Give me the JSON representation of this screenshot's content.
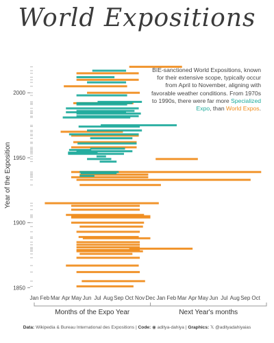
{
  "title": "World Expositions",
  "annotation": {
    "text_before": "BIE-sanctioned World Expositions, known for their extensive scope, typically occur from April to November, aligning with favorable weather conditions. From 1970s to 1990s, there were far more",
    "specialized": "Specialized Expo",
    "comma_than": ", than",
    "world": "World Expos",
    "period": "."
  },
  "caption": {
    "data_label": "Data:",
    "data_text": "Wikipedia & Bureau International des Expositions |",
    "code_label": "Code:",
    "code_handle": "aditya-dahiya",
    "sep": "|",
    "graphics_label": "Graphics:",
    "graphics_handle": "@adityadahiyaias"
  },
  "chart_data": {
    "type": "range-bar",
    "ylabel": "Year of the Exposition",
    "ylim": [
      1847,
      2026
    ],
    "y_ticks": [
      1850,
      1900,
      1950,
      2000
    ],
    "xlim": [
      0,
      22
    ],
    "x_ticks": [
      "Jan",
      "Feb",
      "Mar",
      "Apr",
      "May",
      "Jun",
      "Jul",
      "Aug",
      "Sep",
      "Oct",
      "Nov",
      "Dec",
      "Jan",
      "Feb",
      "Mar",
      "Apr",
      "May",
      "Jun",
      "Jul",
      "Aug",
      "Sep",
      "Oct"
    ],
    "x_group_labels": [
      {
        "label": "Months of the Expo Year",
        "from": 0,
        "to": 11
      },
      {
        "label": "Next Year's months",
        "from": 11,
        "to": 22
      }
    ],
    "series_colors": {
      "world": "#f08a17",
      "specialized": "#1aa99a"
    },
    "series": [
      {
        "name": "World Expos",
        "type": "world",
        "expos": [
          {
            "year": 1851,
            "start": 4.0,
            "end": 9.4
          },
          {
            "year": 1855,
            "start": 4.5,
            "end": 10.5
          },
          {
            "year": 1862,
            "start": 4.0,
            "end": 10.0
          },
          {
            "year": 1867,
            "start": 3.0,
            "end": 9.9
          },
          {
            "year": 1873,
            "start": 4.0,
            "end": 10.0
          },
          {
            "year": 1876,
            "start": 4.3,
            "end": 9.3
          },
          {
            "year": 1878,
            "start": 4.0,
            "end": 10.3
          },
          {
            "year": 1879,
            "start": 4.0,
            "end": 10.0
          },
          {
            "year": 1880,
            "start": 9.0,
            "end": 15.0
          },
          {
            "year": 1881,
            "start": 4.0,
            "end": 10.0
          },
          {
            "year": 1883,
            "start": 4.0,
            "end": 10.0
          },
          {
            "year": 1885,
            "start": 4.0,
            "end": 10.0
          },
          {
            "year": 1888,
            "start": 4.6,
            "end": 11.0
          },
          {
            "year": 1889,
            "start": 4.2,
            "end": 9.9
          },
          {
            "year": 1893,
            "start": 4.0,
            "end": 10.0
          },
          {
            "year": 1897,
            "start": 4.3,
            "end": 10.3
          },
          {
            "year": 1900,
            "start": 3.5,
            "end": 10.4
          },
          {
            "year": 1904,
            "start": 3.5,
            "end": 11.0
          },
          {
            "year": 1905,
            "start": 3.5,
            "end": 11.0
          },
          {
            "year": 1906,
            "start": 3.0,
            "end": 10.4
          },
          {
            "year": 1910,
            "start": 3.5,
            "end": 10.0
          },
          {
            "year": 1913,
            "start": 3.5,
            "end": 10.0
          },
          {
            "year": 1915,
            "start": 1.0,
            "end": 11.8
          },
          {
            "year": 1929,
            "start": 4.3,
            "end": 12.0
          },
          {
            "year": 1933,
            "start": 4.0,
            "end": 20.5
          },
          {
            "year": 1935,
            "start": 3.5,
            "end": 10.8
          },
          {
            "year": 1937,
            "start": 4.3,
            "end": 10.8
          },
          {
            "year": 1939,
            "start": 3.5,
            "end": 21.5
          },
          {
            "year": 1949,
            "start": 11.5,
            "end": 15.5
          },
          {
            "year": 1958,
            "start": 3.5,
            "end": 9.7
          },
          {
            "year": 1962,
            "start": 3.7,
            "end": 9.7
          },
          {
            "year": 1967,
            "start": 3.5,
            "end": 9.9
          },
          {
            "year": 1970,
            "start": 2.5,
            "end": 8.4
          },
          {
            "year": 1992,
            "start": 3.7,
            "end": 9.4
          },
          {
            "year": 2000,
            "start": 5.0,
            "end": 10.0
          },
          {
            "year": 2005,
            "start": 2.8,
            "end": 8.8
          },
          {
            "year": 2010,
            "start": 4.0,
            "end": 9.9
          },
          {
            "year": 2015,
            "start": 4.0,
            "end": 9.9
          },
          {
            "year": 2020,
            "start": 9.0,
            "end": 14.0
          }
        ]
      },
      {
        "name": "Specialized Expo",
        "type": "specialized",
        "expos": [
          {
            "year": 1936,
            "start": 4.3,
            "end": 5.7
          },
          {
            "year": 1938,
            "start": 4.4,
            "end": 7.8
          },
          {
            "year": 1939,
            "start": 4.3,
            "end": 8.0
          },
          {
            "year": 1947,
            "start": 6.2,
            "end": 7.8
          },
          {
            "year": 1949,
            "start": 5.0,
            "end": 7.3
          },
          {
            "year": 1951,
            "start": 5.9,
            "end": 6.8
          },
          {
            "year": 1953,
            "start": 3.2,
            "end": 8.5
          },
          {
            "year": 1954,
            "start": 3.2,
            "end": 6.0
          },
          {
            "year": 1955,
            "start": 4.0,
            "end": 9.3
          },
          {
            "year": 1956,
            "start": 3.3,
            "end": 5.4
          },
          {
            "year": 1957,
            "start": 5.3,
            "end": 8.6
          },
          {
            "year": 1961,
            "start": 4.1,
            "end": 9.7
          },
          {
            "year": 1965,
            "start": 5.3,
            "end": 9.3
          },
          {
            "year": 1968,
            "start": 3.3,
            "end": 9.9
          },
          {
            "year": 1971,
            "start": 5.0,
            "end": 10.2
          },
          {
            "year": 1974,
            "start": 4.2,
            "end": 10.0
          },
          {
            "year": 1975,
            "start": 6.3,
            "end": 13.5
          },
          {
            "year": 1981,
            "start": 2.7,
            "end": 9.1
          },
          {
            "year": 1982,
            "start": 4.0,
            "end": 9.9
          },
          {
            "year": 1984,
            "start": 4.0,
            "end": 10.1
          },
          {
            "year": 1985,
            "start": 3.0,
            "end": 8.7
          },
          {
            "year": 1986,
            "start": 4.0,
            "end": 9.5
          },
          {
            "year": 1988,
            "start": 3.0,
            "end": 9.9
          },
          {
            "year": 1991,
            "start": 4.0,
            "end": 8.8
          },
          {
            "year": 1992,
            "start": 4.0,
            "end": 9.3
          },
          {
            "year": 1993,
            "start": 6.0,
            "end": 10.2
          },
          {
            "year": 1998,
            "start": 4.0,
            "end": 8.8
          },
          {
            "year": 2008,
            "start": 5.0,
            "end": 8.7
          },
          {
            "year": 2012,
            "start": 4.0,
            "end": 7.6
          },
          {
            "year": 2017,
            "start": 5.5,
            "end": 8.7
          }
        ]
      }
    ]
  }
}
